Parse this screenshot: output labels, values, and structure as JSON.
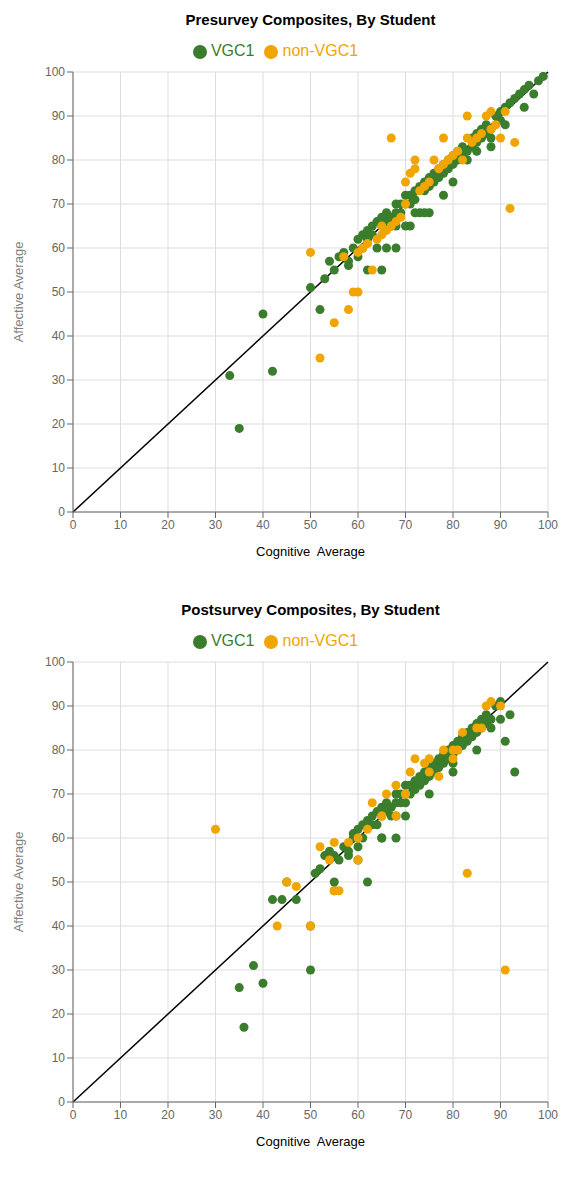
{
  "chart_data": [
    {
      "type": "scatter",
      "title": "Presurvey Composites, By Student",
      "x_label": "Cognitive  Average",
      "y_label": "Affective Average",
      "xlim": [
        0,
        100
      ],
      "ylim": [
        0,
        100
      ],
      "xticks": [
        0,
        10,
        20,
        30,
        40,
        50,
        60,
        70,
        80,
        90,
        100
      ],
      "yticks": [
        0,
        10,
        20,
        30,
        40,
        50,
        60,
        70,
        80,
        90,
        100
      ],
      "grid": true,
      "legend": "upper center",
      "series": [
        {
          "name": "VGC1",
          "color": "#3a7d2c",
          "marker": "circle",
          "x": [
            33,
            35,
            40,
            42,
            50,
            52,
            53,
            54,
            55,
            56,
            57,
            58,
            58,
            59,
            60,
            60,
            61,
            61,
            62,
            62,
            63,
            63,
            64,
            64,
            65,
            65,
            66,
            66,
            67,
            67,
            68,
            68,
            68,
            69,
            69,
            70,
            70,
            71,
            71,
            72,
            72,
            73,
            73,
            74,
            74,
            75,
            75,
            76,
            76,
            77,
            77,
            78,
            78,
            79,
            79,
            80,
            80,
            81,
            81,
            82,
            82,
            83,
            84,
            84,
            85,
            85,
            86,
            86,
            87,
            87,
            88,
            88,
            89,
            90,
            90,
            91,
            92,
            93,
            94,
            95,
            96,
            97,
            98,
            99,
            75,
            70,
            68,
            65,
            72,
            80,
            83,
            78,
            85,
            88,
            91,
            95,
            62,
            66,
            71,
            74
          ],
          "y": [
            31,
            19,
            45,
            32,
            51,
            46,
            53,
            57,
            55,
            58,
            59,
            56,
            57,
            60,
            62,
            58,
            60,
            63,
            62,
            64,
            63,
            65,
            66,
            60,
            65,
            67,
            66,
            68,
            67,
            65,
            68,
            70,
            65,
            70,
            68,
            70,
            72,
            72,
            70,
            73,
            71,
            74,
            68,
            75,
            73,
            76,
            74,
            77,
            75,
            78,
            76,
            79,
            77,
            80,
            78,
            81,
            79,
            82,
            80,
            83,
            81,
            82,
            85,
            83,
            86,
            84,
            87,
            85,
            88,
            86,
            87,
            85,
            90,
            91,
            89,
            92,
            93,
            94,
            95,
            96,
            97,
            95,
            98,
            99,
            68,
            65,
            60,
            55,
            68,
            75,
            80,
            72,
            82,
            83,
            88,
            92,
            55,
            60,
            65,
            68
          ]
        },
        {
          "name": "non-VGC1",
          "color": "#f0a500",
          "marker": "circle",
          "x": [
            50,
            52,
            55,
            57,
            58,
            59,
            60,
            61,
            62,
            63,
            64,
            65,
            66,
            67,
            68,
            69,
            70,
            71,
            72,
            73,
            74,
            75,
            76,
            77,
            78,
            79,
            80,
            81,
            82,
            83,
            84,
            85,
            86,
            87,
            88,
            89,
            90,
            91,
            92,
            93,
            67,
            72,
            78,
            83,
            88,
            60,
            65,
            70
          ],
          "y": [
            59,
            35,
            43,
            58,
            46,
            50,
            59,
            60,
            61,
            55,
            62,
            63,
            64,
            65,
            66,
            67,
            75,
            77,
            78,
            73,
            74,
            75,
            80,
            78,
            79,
            80,
            81,
            82,
            80,
            85,
            84,
            85,
            86,
            90,
            87,
            88,
            85,
            91,
            69,
            84,
            85,
            80,
            85,
            90,
            91,
            50,
            65,
            70
          ]
        },
        {
          "type": "line",
          "color": "#000000",
          "line_style": "solid",
          "x": [
            0,
            100
          ],
          "y": [
            0,
            100
          ]
        }
      ]
    },
    {
      "type": "scatter",
      "title": "Postsurvey Composites, By Student",
      "x_label": "Cognitive  Average",
      "y_label": "Affective Average",
      "xlim": [
        0,
        100
      ],
      "ylim": [
        0,
        100
      ],
      "xticks": [
        0,
        10,
        20,
        30,
        40,
        50,
        60,
        70,
        80,
        90,
        100
      ],
      "yticks": [
        0,
        10,
        20,
        30,
        40,
        50,
        60,
        70,
        80,
        90,
        100
      ],
      "grid": true,
      "legend": "upper center",
      "series": [
        {
          "name": "VGC1",
          "color": "#3a7d2c",
          "marker": "circle",
          "x": [
            35,
            36,
            38,
            40,
            42,
            44,
            45,
            47,
            50,
            50,
            51,
            52,
            53,
            54,
            55,
            55,
            56,
            57,
            58,
            58,
            59,
            59,
            60,
            60,
            60,
            61,
            61,
            62,
            62,
            63,
            63,
            64,
            64,
            65,
            65,
            65,
            66,
            66,
            67,
            67,
            68,
            68,
            68,
            69,
            69,
            70,
            70,
            70,
            71,
            71,
            72,
            72,
            73,
            73,
            74,
            74,
            75,
            75,
            75,
            76,
            76,
            77,
            77,
            78,
            78,
            79,
            79,
            80,
            80,
            80,
            81,
            81,
            82,
            82,
            83,
            83,
            84,
            84,
            85,
            85,
            86,
            86,
            87,
            87,
            88,
            88,
            89,
            90,
            91,
            92,
            93,
            60,
            65,
            70,
            75,
            80,
            85,
            90,
            55,
            68
          ],
          "y": [
            26,
            17,
            31,
            27,
            46,
            46,
            50,
            46,
            30,
            40,
            52,
            53,
            56,
            57,
            56,
            50,
            55,
            58,
            56,
            57,
            60,
            61,
            62,
            58,
            60,
            60,
            63,
            50,
            64,
            63,
            65,
            66,
            63,
            65,
            67,
            60,
            66,
            68,
            67,
            65,
            68,
            70,
            65,
            70,
            68,
            70,
            72,
            68,
            72,
            70,
            73,
            71,
            74,
            72,
            75,
            73,
            76,
            74,
            75,
            77,
            75,
            78,
            76,
            79,
            77,
            80,
            78,
            81,
            79,
            77,
            82,
            80,
            83,
            81,
            84,
            82,
            85,
            83,
            86,
            84,
            87,
            85,
            88,
            86,
            87,
            85,
            90,
            91,
            82,
            88,
            75,
            55,
            60,
            65,
            70,
            75,
            80,
            87,
            48,
            60
          ]
        },
        {
          "name": "non-VGC1",
          "color": "#f0a500",
          "marker": "circle",
          "x": [
            30,
            43,
            45,
            47,
            50,
            52,
            54,
            55,
            56,
            58,
            60,
            62,
            63,
            65,
            66,
            68,
            70,
            71,
            72,
            74,
            75,
            77,
            78,
            80,
            81,
            82,
            83,
            85,
            86,
            87,
            88,
            90,
            91,
            60,
            65,
            70,
            75,
            80,
            55,
            68
          ],
          "y": [
            62,
            40,
            50,
            49,
            40,
            58,
            55,
            59,
            48,
            59,
            55,
            62,
            68,
            65,
            70,
            72,
            70,
            75,
            78,
            77,
            78,
            74,
            80,
            78,
            80,
            84,
            52,
            85,
            85,
            90,
            91,
            90,
            30,
            60,
            65,
            70,
            75,
            80,
            48,
            65
          ]
        },
        {
          "type": "line",
          "color": "#000000",
          "line_style": "solid",
          "x": [
            0,
            100
          ],
          "y": [
            0,
            100
          ]
        }
      ]
    }
  ]
}
